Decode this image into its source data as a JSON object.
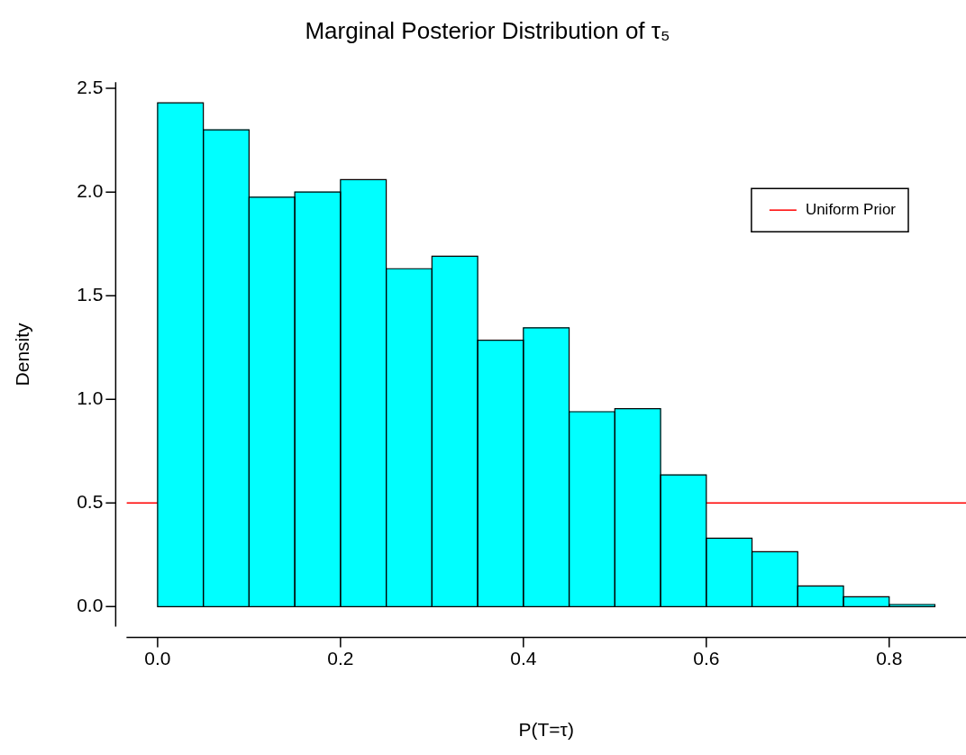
{
  "chart_data": {
    "type": "histogram",
    "title": "Marginal Posterior Distribution of τ₅",
    "xlabel": "P(T=τ)",
    "ylabel": "Density",
    "bins": [
      0,
      0.05,
      0.1,
      0.15,
      0.2,
      0.25,
      0.3,
      0.35,
      0.4,
      0.45,
      0.5,
      0.55,
      0.6,
      0.65,
      0.7,
      0.75,
      0.8,
      0.85
    ],
    "values": [
      2.43,
      2.3,
      1.975,
      2.0,
      2.06,
      1.63,
      1.69,
      1.285,
      1.345,
      0.94,
      0.955,
      0.635,
      0.33,
      0.265,
      0.1,
      0.047,
      0.01
    ],
    "color": "#00ffff",
    "xlim": [
      -0.034,
      0.884
    ],
    "ylim": [
      -0.097,
      2.53
    ],
    "xticks": [
      {
        "value": 0,
        "label": "0.0"
      },
      0.2,
      0.4,
      0.6,
      0.8
    ],
    "yticks": [
      {
        "value": 0,
        "label": "0.0"
      },
      0.5,
      {
        "value": 1,
        "label": "1.0"
      },
      1.5,
      {
        "value": 2,
        "label": "2.0"
      },
      2.5
    ],
    "ref_lines": [
      {
        "axis": "y",
        "value": 0.5,
        "label": "Uniform Prior",
        "color": "#ff0000"
      }
    ],
    "legend": "top right"
  }
}
